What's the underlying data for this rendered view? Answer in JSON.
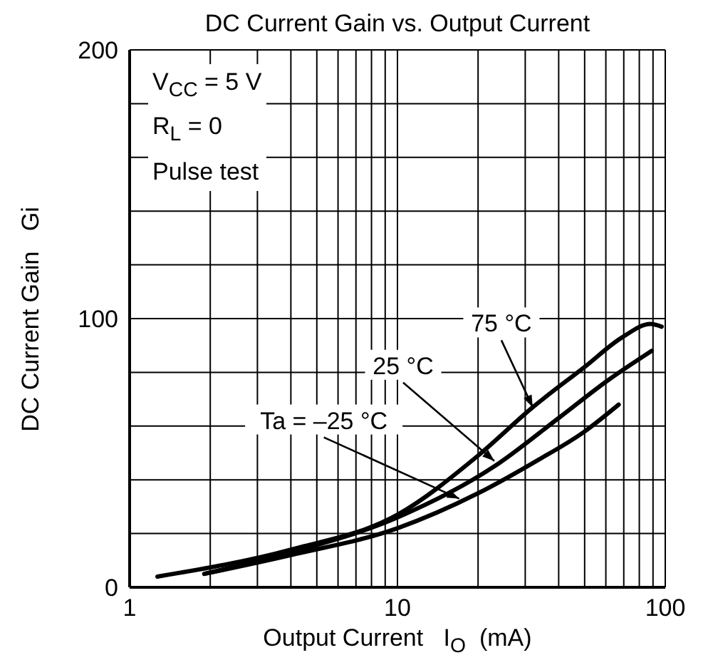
{
  "chart_data": {
    "type": "line",
    "title": "DC Current Gain vs. Output Current",
    "xlabel": "Output Current   I$_{O}$  (mA)",
    "ylabel": "DC Current Gain   Gi",
    "log": "x",
    "grid": true,
    "marker": "none",
    "line_style": "solid",
    "xlim": [
      1,
      100
    ],
    "xticks": [
      1,
      {
        "value": 2,
        "label": null
      },
      {
        "value": 3,
        "label": null
      },
      {
        "value": 4,
        "label": null
      },
      {
        "value": 5,
        "label": null
      },
      {
        "value": 6,
        "label": null
      },
      {
        "value": 7,
        "label": null
      },
      {
        "value": 8,
        "label": null
      },
      {
        "value": 9,
        "label": null
      },
      10,
      {
        "value": 20,
        "label": null
      },
      {
        "value": 30,
        "label": null
      },
      {
        "value": 40,
        "label": null
      },
      {
        "value": 50,
        "label": null
      },
      {
        "value": 60,
        "label": null
      },
      {
        "value": 70,
        "label": null
      },
      {
        "value": 80,
        "label": null
      },
      {
        "value": 90,
        "label": null
      },
      100
    ],
    "ylim": [
      0,
      200
    ],
    "yticks": [
      0,
      {
        "value": 20,
        "label": null
      },
      {
        "value": 40,
        "label": null
      },
      {
        "value": 60,
        "label": null
      },
      {
        "value": 80,
        "label": null
      },
      100,
      {
        "value": 120,
        "label": null
      },
      {
        "value": 140,
        "label": null
      },
      {
        "value": 160,
        "label": null
      },
      {
        "value": 180,
        "label": null
      },
      200
    ],
    "series": [
      {
        "color": "#000000",
        "x": [
          1.27,
          4,
          10,
          20,
          32,
          50,
          69,
          88,
          97
        ],
        "values": [
          4,
          14,
          27,
          49,
          67,
          82,
          93,
          98,
          97
        ]
      },
      {
        "color": "#000000",
        "x": [
          1.9,
          4,
          10,
          23,
          40,
          61,
          89
        ],
        "values": [
          5,
          13,
          26,
          45,
          63,
          77,
          88
        ]
      },
      {
        "color": "#000000",
        "x": [
          1.9,
          4,
          10,
          20,
          33,
          50,
          67
        ],
        "values": [
          5,
          12,
          22,
          35,
          47,
          58,
          68
        ]
      }
    ],
    "annotations": [
      "V$_{CC}$ = 5 V",
      "R$_{L}$ = 0",
      "Pulse test",
      {
        "text": "75 °C",
        "x": 32,
        "y": 67
      },
      {
        "text": "25 °C",
        "x": 23,
        "y": 47
      },
      {
        "text": "Ta = –25 °C",
        "x": 17,
        "y": 33
      }
    ]
  }
}
